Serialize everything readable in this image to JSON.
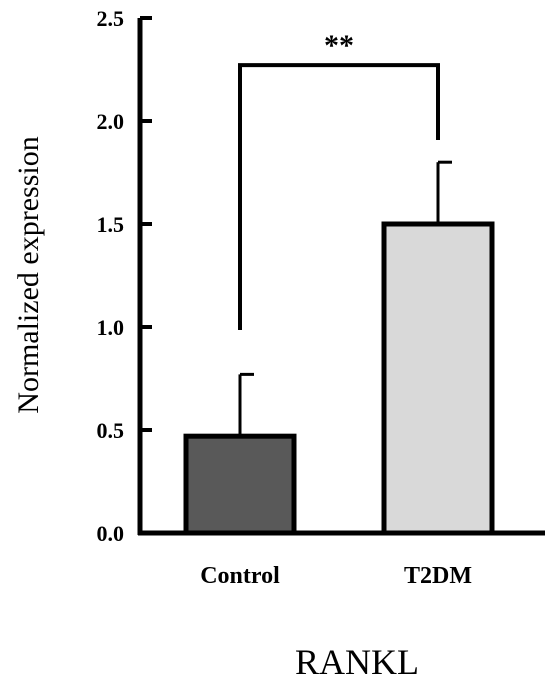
{
  "chart_data": {
    "type": "bar",
    "title": "",
    "xlabel": "RANKL",
    "ylabel": "Normalized expression",
    "categories": [
      "Control",
      "T2DM"
    ],
    "values": [
      0.47,
      1.5
    ],
    "error_bars": [
      0.3,
      0.3
    ],
    "bar_colors": [
      "#595959",
      "#d9d9d9"
    ],
    "edge_color": "#000000",
    "ylim": [
      0,
      2.5
    ],
    "yticks": [
      0.0,
      0.5,
      1.0,
      1.5,
      2.0,
      2.5
    ],
    "ytick_labels": [
      "0.0",
      "0.5",
      "1.0",
      "1.5",
      "2.0",
      "2.5"
    ],
    "grid": false,
    "legend": "none",
    "significance": {
      "label": "**",
      "between": [
        "Control",
        "T2DM"
      ],
      "bracket_y": 2.15
    }
  }
}
